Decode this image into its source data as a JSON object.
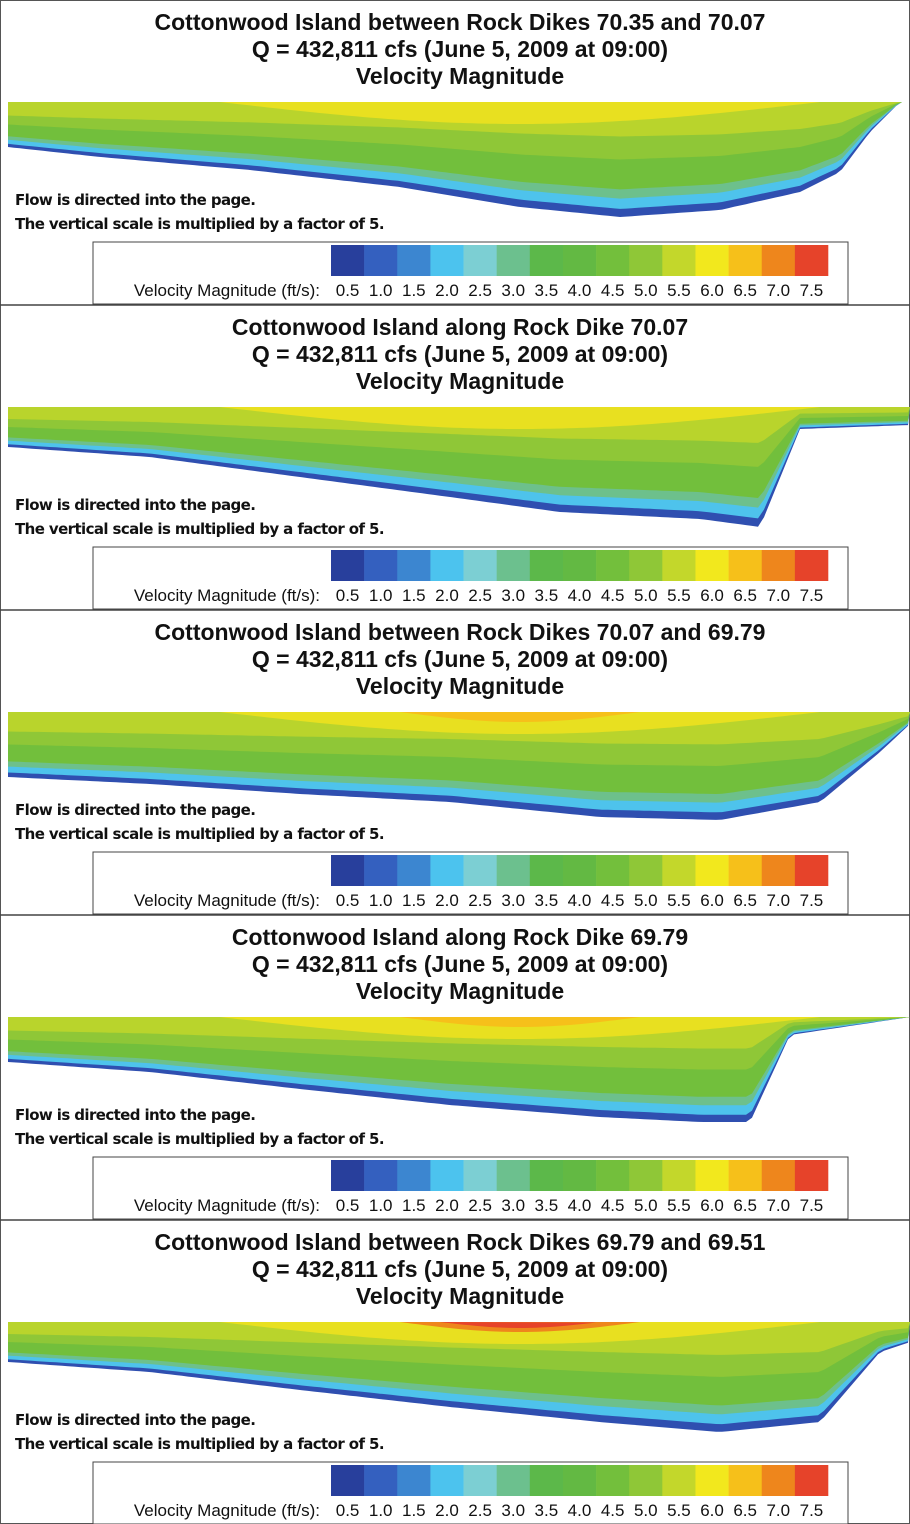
{
  "panels": [
    {
      "title": [
        "Cottonwood Island between Rock Dikes 70.35 and 70.07",
        "Q = 432,811 cfs (June 5, 2009 at 09:00)",
        "Velocity Magnitude"
      ],
      "notes": [
        "Flow is directed into the page.",
        "The vertical scale is multiplied by a factor of 5."
      ]
    },
    {
      "title": [
        "Cottonwood Island along Rock Dike 70.07",
        "Q = 432,811 cfs (June 5, 2009 at 09:00)",
        "Velocity Magnitude"
      ],
      "notes": [
        "Flow is directed into the page.",
        "The vertical scale is multiplied by a factor of 5."
      ]
    },
    {
      "title": [
        "Cottonwood Island between Rock Dikes 70.07 and 69.79",
        "Q = 432,811 cfs (June 5, 2009 at 09:00)",
        "Velocity Magnitude"
      ],
      "notes": [
        "Flow is directed into the page.",
        "The vertical scale is multiplied by a factor of 5."
      ]
    },
    {
      "title": [
        "Cottonwood Island along Rock Dike 69.79",
        "Q = 432,811 cfs (June 5, 2009 at 09:00)",
        "Velocity Magnitude"
      ],
      "notes": [
        "Flow is directed into the page.",
        "The vertical scale is multiplied by a factor of 5."
      ]
    },
    {
      "title": [
        "Cottonwood Island between Rock Dikes 69.79 and 69.51",
        "Q = 432,811 cfs (June 5, 2009 at 09:00)",
        "Velocity Magnitude"
      ],
      "notes": [
        "Flow is directed into the page.",
        "The vertical scale is multiplied by a factor of 5."
      ]
    }
  ],
  "colorbar": {
    "label": "Velocity Magnitude (ft/s):",
    "ticks": [
      "0.5",
      "1.0",
      "1.5",
      "2.0",
      "2.5",
      "3.0",
      "3.5",
      "4.0",
      "4.5",
      "5.0",
      "5.5",
      "6.0",
      "6.5",
      "7.0",
      "7.5"
    ],
    "colors": [
      "#283f9c",
      "#3460bf",
      "#3c86d0",
      "#4cc3ee",
      "#7ccfd3",
      "#6cc08e",
      "#5cb84a",
      "#63b943",
      "#73bf3c",
      "#8fc737",
      "#c3d72b",
      "#f2e81d",
      "#f6c01a",
      "#ee861c",
      "#e6432a"
    ]
  }
}
